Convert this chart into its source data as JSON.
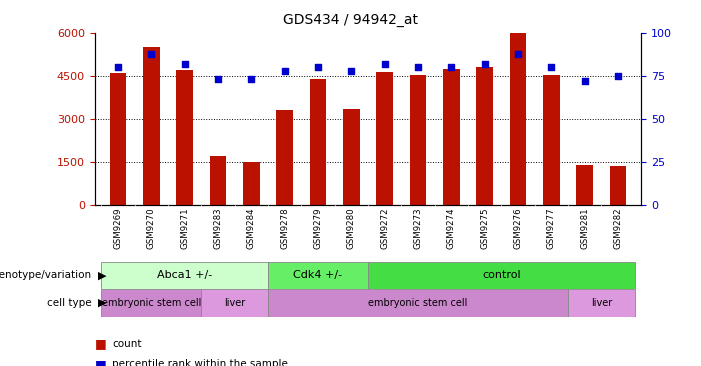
{
  "title": "GDS434 / 94942_at",
  "samples": [
    "GSM9269",
    "GSM9270",
    "GSM9271",
    "GSM9283",
    "GSM9284",
    "GSM9278",
    "GSM9279",
    "GSM9280",
    "GSM9272",
    "GSM9273",
    "GSM9274",
    "GSM9275",
    "GSM9276",
    "GSM9277",
    "GSM9281",
    "GSM9282"
  ],
  "counts": [
    4600,
    5500,
    4700,
    1700,
    1500,
    3300,
    4400,
    3350,
    4650,
    4550,
    4750,
    4800,
    6000,
    4550,
    1400,
    1350
  ],
  "percentiles": [
    80,
    88,
    82,
    73,
    73,
    78,
    80,
    78,
    82,
    80,
    80,
    82,
    88,
    80,
    72,
    75
  ],
  "bar_color": "#bb1100",
  "dot_color": "#0000cc",
  "ylim_left": [
    0,
    6000
  ],
  "ylim_right": [
    0,
    100
  ],
  "yticks_left": [
    0,
    1500,
    3000,
    4500,
    6000
  ],
  "yticks_right": [
    0,
    25,
    50,
    75,
    100
  ],
  "grid_values": [
    1500,
    3000,
    4500
  ],
  "genotype_groups": [
    {
      "label": "Abca1 +/-",
      "start": 0,
      "end": 5,
      "color": "#ccffcc"
    },
    {
      "label": "Cdk4 +/-",
      "start": 5,
      "end": 8,
      "color": "#66ee66"
    },
    {
      "label": "control",
      "start": 8,
      "end": 16,
      "color": "#44dd44"
    }
  ],
  "celltype_groups": [
    {
      "label": "embryonic stem cell",
      "start": 0,
      "end": 3,
      "color": "#cc88cc"
    },
    {
      "label": "liver",
      "start": 3,
      "end": 5,
      "color": "#dd99dd"
    },
    {
      "label": "embryonic stem cell",
      "start": 5,
      "end": 14,
      "color": "#cc88cc"
    },
    {
      "label": "liver",
      "start": 14,
      "end": 16,
      "color": "#dd99dd"
    }
  ],
  "bar_width": 0.5,
  "xtick_bg": "#cccccc",
  "legend_count_color": "#bb1100",
  "legend_dot_color": "#0000cc"
}
